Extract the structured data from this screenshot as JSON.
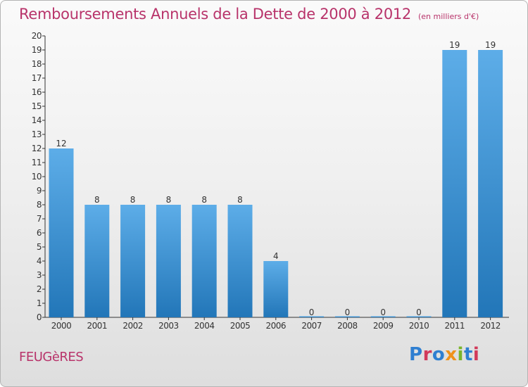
{
  "title": "Remboursements Annuels de la Dette de 2000 à 2012",
  "subtitle": "(en milliers d'€)",
  "commune": "FEUGèRES",
  "brand": "Proxiti",
  "colors": {
    "title": "#b8336a",
    "bar_top": "#5dade8",
    "bar_bottom": "#2276b8"
  },
  "chart_data": {
    "type": "bar",
    "title": "Remboursements Annuels de la Dette de 2000 à 2012",
    "subtitle": "(en milliers d'€)",
    "categories": [
      "2000",
      "2001",
      "2002",
      "2003",
      "2004",
      "2005",
      "2006",
      "2007",
      "2008",
      "2009",
      "2010",
      "2011",
      "2012"
    ],
    "values": [
      12,
      8,
      8,
      8,
      8,
      8,
      4,
      0,
      0,
      0,
      0,
      19,
      19
    ],
    "data_labels": [
      "12",
      "8",
      "8",
      "8",
      "8",
      "8",
      "4",
      "0",
      "0",
      "0",
      "0",
      "19",
      "19"
    ],
    "ylim": [
      0,
      20
    ],
    "yticks": [
      0,
      1,
      2,
      3,
      4,
      5,
      6,
      7,
      8,
      9,
      10,
      11,
      12,
      13,
      14,
      15,
      16,
      17,
      18,
      19,
      20
    ],
    "grid": false,
    "legend": "none"
  }
}
